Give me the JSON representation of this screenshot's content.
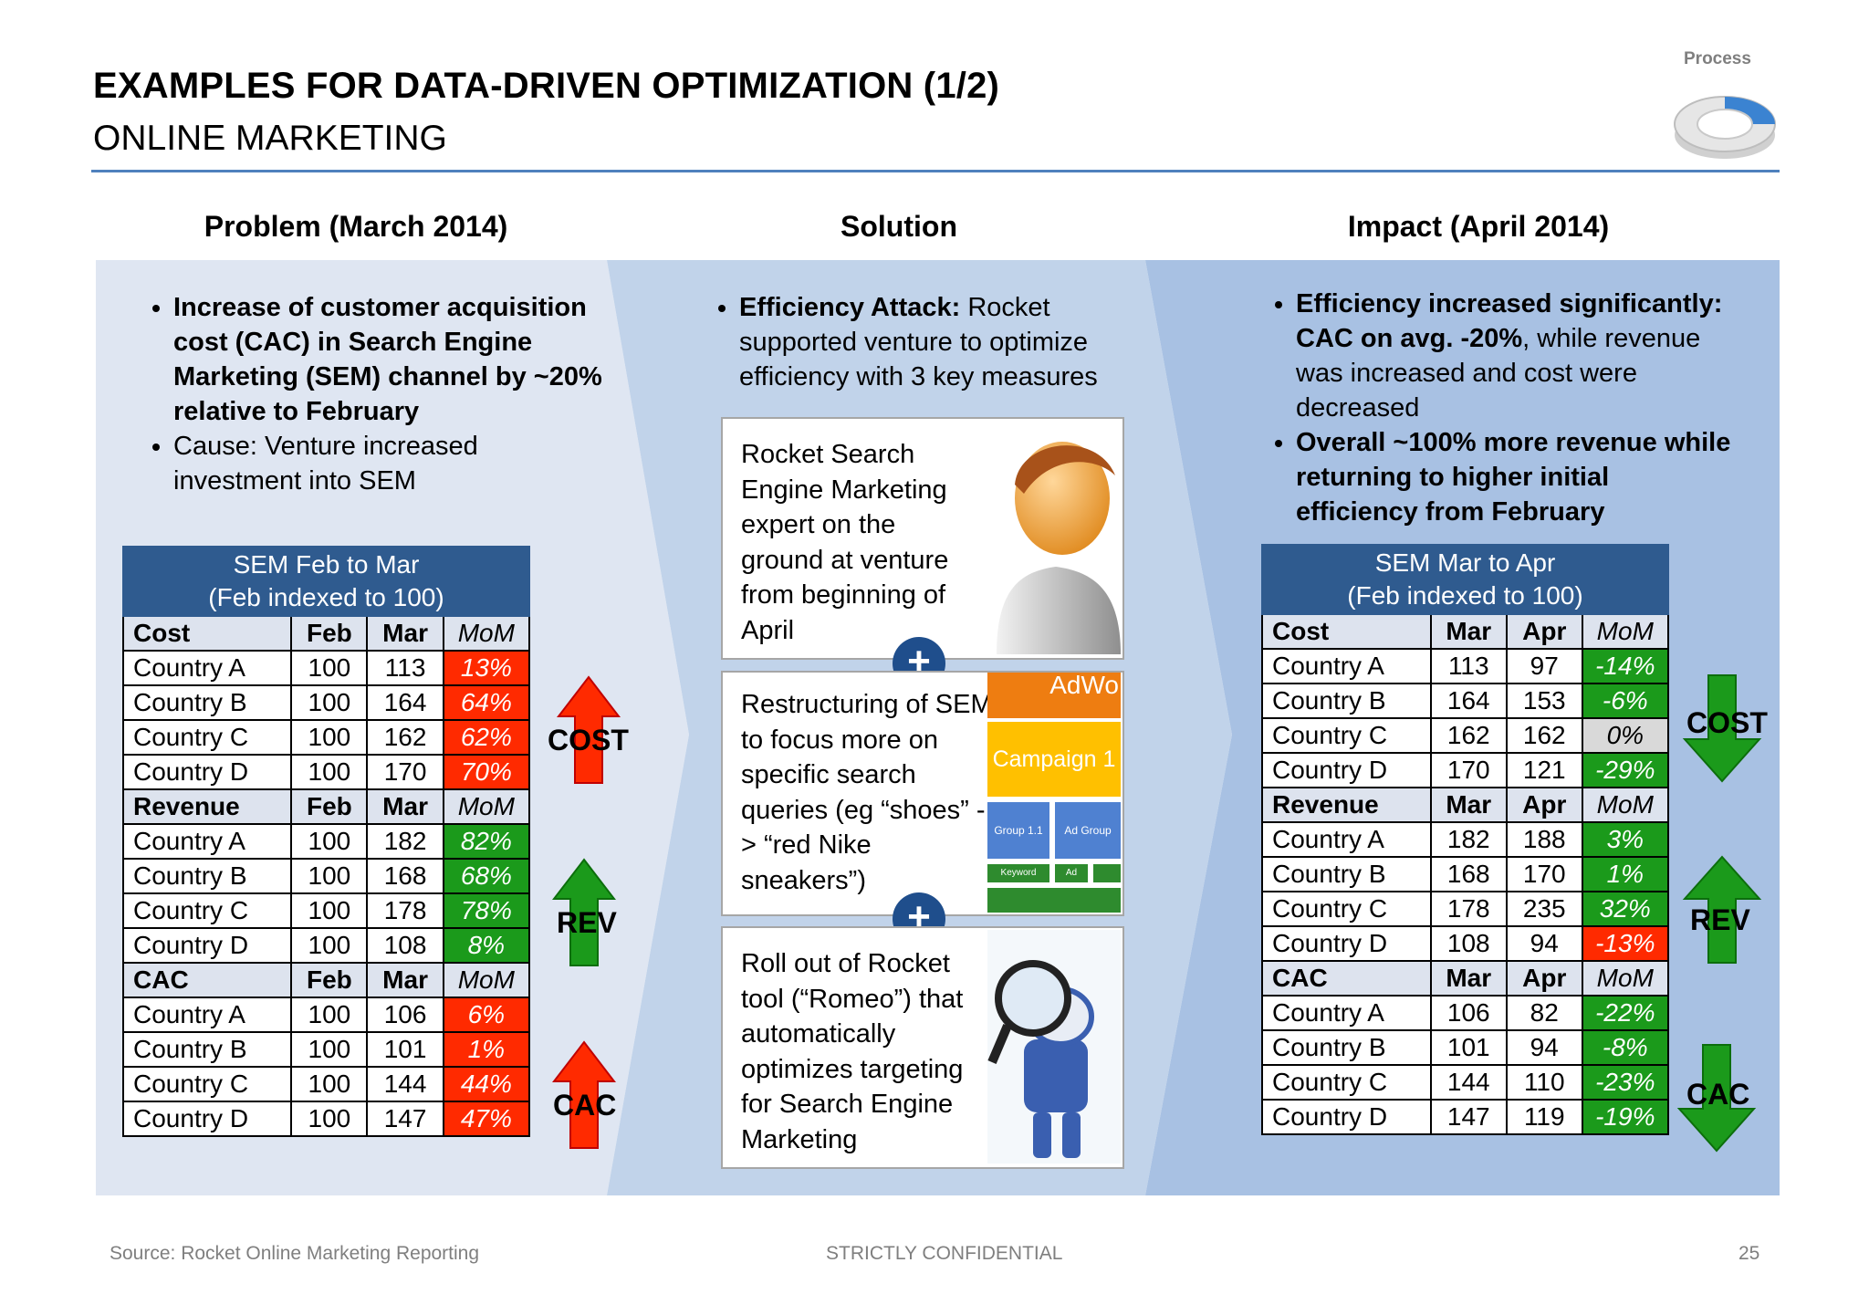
{
  "header": {
    "title": "EXAMPLES FOR DATA-DRIVEN OPTIMIZATION (1/2)",
    "subtitle": "ONLINE MARKETING",
    "process_label": "Process"
  },
  "columns": {
    "problem": "Problem (March 2014)",
    "solution": "Solution",
    "impact": "Impact (April 2014)"
  },
  "problem": {
    "bullet1": "Increase of customer acquisition cost (CAC) in Search Engine Marketing (SEM) channel by ~20% relative to February",
    "bullet2": "Cause: Venture increased investment into SEM"
  },
  "solution": {
    "intro_bold": "Efficiency Attack:",
    "intro_rest": " Rocket supported venture to optimize efficiency with 3 key measures",
    "measure1": "Rocket Search Engine Marketing expert on the ground at venture from beginning of April",
    "measure2": "Restructuring of SEM to focus more on specific search queries (eg “shoes” -> “red Nike sneakers”)",
    "measure3": "Roll out of Rocket tool (“Romeo”) that automatically optimizes targeting for Search Engine Marketing",
    "plus": "+",
    "adwords_text": "AdWo",
    "campaign_text": "Campaign 1",
    "adgroup1": "Group 1.1",
    "adgroup2": "Ad Group",
    "keyword": "Keyword",
    "ad": "Ad"
  },
  "impact": {
    "bullet1_bold": "Efficiency increased significantly: CAC on avg. -20%",
    "bullet1_rest": ", while revenue was increased and cost were decreased",
    "bullet2": "Overall ~100% more revenue while returning to higher initial efficiency from February"
  },
  "table_left": {
    "header_line1": "SEM Feb to Mar",
    "header_line2": "(Feb indexed to 100)",
    "sections": [
      {
        "label": "Cost",
        "c1": "Feb",
        "c2": "Mar",
        "c3": "MoM",
        "rows": [
          {
            "name": "Country A",
            "v1": "100",
            "v2": "113",
            "mom": "13%",
            "tone": "red"
          },
          {
            "name": "Country B",
            "v1": "100",
            "v2": "164",
            "mom": "64%",
            "tone": "red"
          },
          {
            "name": "Country C",
            "v1": "100",
            "v2": "162",
            "mom": "62%",
            "tone": "red"
          },
          {
            "name": "Country D",
            "v1": "100",
            "v2": "170",
            "mom": "70%",
            "tone": "red"
          }
        ]
      },
      {
        "label": "Revenue",
        "c1": "Feb",
        "c2": "Mar",
        "c3": "MoM",
        "rows": [
          {
            "name": "Country A",
            "v1": "100",
            "v2": "182",
            "mom": "82%",
            "tone": "green"
          },
          {
            "name": "Country B",
            "v1": "100",
            "v2": "168",
            "mom": "68%",
            "tone": "green"
          },
          {
            "name": "Country C",
            "v1": "100",
            "v2": "178",
            "mom": "78%",
            "tone": "green"
          },
          {
            "name": "Country D",
            "v1": "100",
            "v2": "108",
            "mom": "8%",
            "tone": "green"
          }
        ]
      },
      {
        "label": "CAC",
        "c1": "Feb",
        "c2": "Mar",
        "c3": "MoM",
        "rows": [
          {
            "name": "Country A",
            "v1": "100",
            "v2": "106",
            "mom": "6%",
            "tone": "red"
          },
          {
            "name": "Country B",
            "v1": "100",
            "v2": "101",
            "mom": "1%",
            "tone": "red"
          },
          {
            "name": "Country C",
            "v1": "100",
            "v2": "144",
            "mom": "44%",
            "tone": "red"
          },
          {
            "name": "Country D",
            "v1": "100",
            "v2": "147",
            "mom": "47%",
            "tone": "red"
          }
        ]
      }
    ]
  },
  "table_right": {
    "header_line1": "SEM Mar to Apr",
    "header_line2": "(Feb indexed to 100)",
    "sections": [
      {
        "label": "Cost",
        "c1": "Mar",
        "c2": "Apr",
        "c3": "MoM",
        "rows": [
          {
            "name": "Country A",
            "v1": "113",
            "v2": "97",
            "mom": "-14%",
            "tone": "green"
          },
          {
            "name": "Country B",
            "v1": "164",
            "v2": "153",
            "mom": "-6%",
            "tone": "green"
          },
          {
            "name": "Country C",
            "v1": "162",
            "v2": "162",
            "mom": "0%",
            "tone": "gray"
          },
          {
            "name": "Country D",
            "v1": "170",
            "v2": "121",
            "mom": "-29%",
            "tone": "green"
          }
        ]
      },
      {
        "label": "Revenue",
        "c1": "Mar",
        "c2": "Apr",
        "c3": "MoM",
        "rows": [
          {
            "name": "Country A",
            "v1": "182",
            "v2": "188",
            "mom": "3%",
            "tone": "green"
          },
          {
            "name": "Country B",
            "v1": "168",
            "v2": "170",
            "mom": "1%",
            "tone": "green"
          },
          {
            "name": "Country C",
            "v1": "178",
            "v2": "235",
            "mom": "32%",
            "tone": "green"
          },
          {
            "name": "Country D",
            "v1": "108",
            "v2": "94",
            "mom": "-13%",
            "tone": "red"
          }
        ]
      },
      {
        "label": "CAC",
        "c1": "Mar",
        "c2": "Apr",
        "c3": "MoM",
        "rows": [
          {
            "name": "Country A",
            "v1": "106",
            "v2": "82",
            "mom": "-22%",
            "tone": "green"
          },
          {
            "name": "Country B",
            "v1": "101",
            "v2": "94",
            "mom": "-8%",
            "tone": "green"
          },
          {
            "name": "Country C",
            "v1": "144",
            "v2": "110",
            "mom": "-23%",
            "tone": "green"
          },
          {
            "name": "Country D",
            "v1": "147",
            "v2": "119",
            "mom": "-19%",
            "tone": "green"
          }
        ]
      }
    ]
  },
  "arrows_left": {
    "cost": "COST",
    "rev": "REV",
    "cac": "CAC"
  },
  "arrows_right": {
    "cost": "COST",
    "rev": "REV",
    "cac": "CAC"
  },
  "colors": {
    "up_red": "#ff2a00",
    "up_green": "#1b9a1b",
    "header_blue": "#2f5b8f"
  },
  "footer": {
    "source": "Source: Rocket Online Marketing Reporting",
    "confidential": "STRICTLY CONFIDENTIAL",
    "page": "25"
  }
}
